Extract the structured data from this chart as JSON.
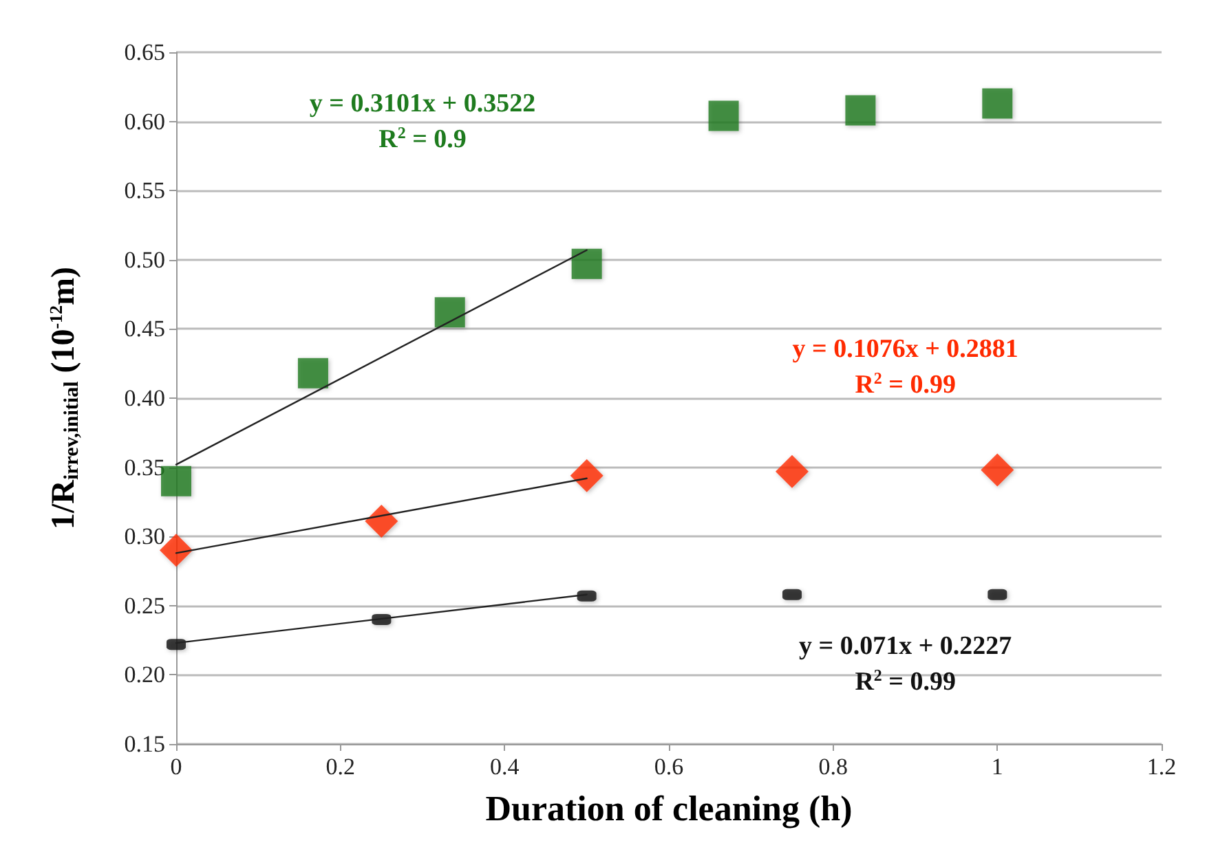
{
  "chart_data": {
    "type": "scatter",
    "xlabel": "Duration of cleaning (h)",
    "ylabel": "1/R$_{irrev,initial}$ (10$^{-12}$m)",
    "xlim": [
      0,
      1.2
    ],
    "xticks": [
      0,
      0.2,
      0.4,
      0.6,
      0.8,
      1,
      1.2
    ],
    "ylim": [
      0.15,
      0.65
    ],
    "yticks": [
      {
        "value": 0.15,
        "label": "0.15"
      },
      {
        "value": 0.2,
        "label": "0.20"
      },
      {
        "value": 0.25,
        "label": "0.25"
      },
      {
        "value": 0.3,
        "label": "0.30"
      },
      {
        "value": 0.35,
        "label": "0.35"
      },
      {
        "value": 0.4,
        "label": "0.40"
      },
      {
        "value": 0.45,
        "label": "0.45"
      },
      {
        "value": 0.5,
        "label": "0.50"
      },
      {
        "value": 0.55,
        "label": "0.55"
      },
      {
        "value": 0.6,
        "label": "0.60"
      },
      {
        "value": 0.65,
        "label": "0.65"
      }
    ],
    "grid": "y",
    "series": [
      {
        "marker": "square",
        "color": "#1e7b1e",
        "x": [
          0,
          0.1667,
          0.3333,
          0.5,
          0.6667,
          0.8333,
          1
        ],
        "values": [
          0.34,
          0.418,
          0.462,
          0.497,
          0.604,
          0.608,
          0.613
        ]
      },
      {
        "marker": "diamond",
        "color": "#ff2a00",
        "x": [
          0,
          0.25,
          0.5,
          0.75,
          1
        ],
        "values": [
          0.29,
          0.311,
          0.344,
          0.347,
          0.348
        ]
      },
      {
        "color": "#111111",
        "x": [
          0,
          0.25,
          0.5,
          0.75,
          1
        ],
        "values": [
          0.222,
          0.24,
          0.257,
          0.258,
          0.258
        ]
      },
      {
        "type": "line",
        "marker": "none",
        "color": "#222222",
        "x": [
          0,
          0.5
        ],
        "values": [
          0.352,
          0.507
        ]
      },
      {
        "type": "line",
        "marker": "none",
        "color": "#222222",
        "x": [
          0,
          0.5
        ],
        "values": [
          0.288,
          0.342
        ]
      },
      {
        "type": "line",
        "marker": "none",
        "color": "#222222",
        "x": [
          0,
          0.5
        ],
        "values": [
          0.223,
          0.258
        ]
      }
    ],
    "annotations": [
      "y = 0.3101x + 0.3522\nR$^{2}$ = 0.9",
      "y = 0.1076x + 0.2881\nR$^{2}$ = 0.99",
      "y = 0.071x + 0.2227\nR$^{2}$ = 0.99"
    ]
  }
}
